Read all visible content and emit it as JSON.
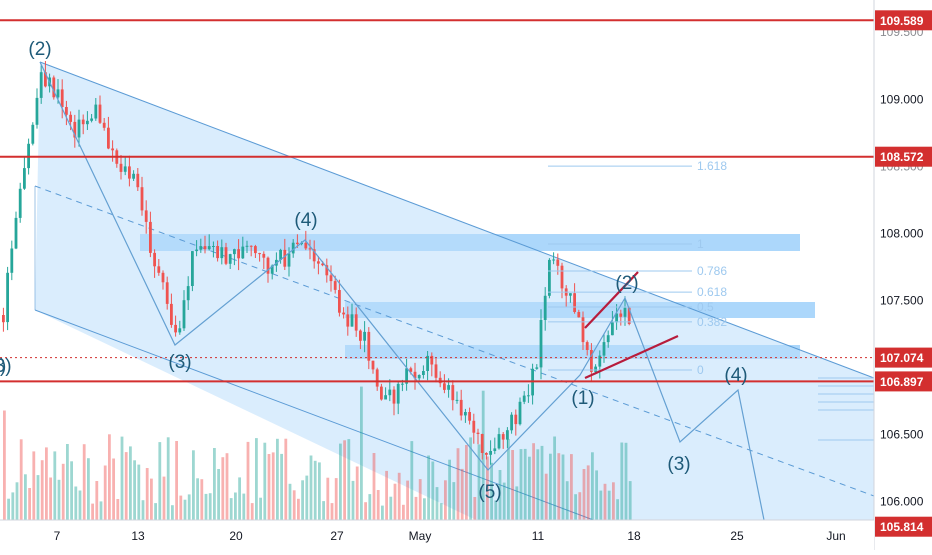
{
  "chart_data": {
    "type": "candlestick",
    "title": "",
    "xlabel": "",
    "ylabel": "",
    "ylim": [
      105.64,
      109.74
    ],
    "x_ticks": [
      "7",
      "13",
      "20",
      "27",
      "May",
      "11",
      "18",
      "25",
      "Jun"
    ],
    "y_ticks": [
      "109.000",
      "108.000",
      "107.500",
      "106.500",
      "106.000"
    ],
    "y_ticks_partial": [
      "109.500",
      "108.500"
    ],
    "price_levels": [
      {
        "label": "109.589",
        "value": 109.589,
        "color": "#d32f2f"
      },
      {
        "label": "108.572",
        "value": 108.572,
        "color": "#d32f2f"
      },
      {
        "label": "106.897",
        "value": 106.897,
        "color": "#d32f2f"
      },
      {
        "label": "105.814",
        "value": 105.814,
        "color": "#d32f2f"
      }
    ],
    "current_price": {
      "label": "107.074",
      "value": 107.074,
      "color": "#d32f2f"
    },
    "fib_levels": [
      {
        "label": "1.618",
        "ratio": 1.618
      },
      {
        "label": "1",
        "ratio": 1
      },
      {
        "label": "0.786",
        "ratio": 0.786
      },
      {
        "label": "0.618",
        "ratio": 0.618
      },
      {
        "label": "0.5",
        "ratio": 0.5
      },
      {
        "label": "0.382",
        "ratio": 0.382
      },
      {
        "label": "0",
        "ratio": 0
      }
    ],
    "wave_labels": [
      "(2)",
      "(3)",
      "(4)",
      "(5)",
      "(1)",
      "(2)",
      "(3)",
      "(4)",
      "(3)"
    ],
    "edge_label": ")",
    "colors": {
      "up": "#26a69a",
      "down": "#ef5350",
      "level_line": "#d32f2f",
      "channel_fill": "#bbdefb",
      "channel_line": "#5b9bd5",
      "zone_fill": "#90caf9",
      "wave_path": "#64a0d2",
      "wedge_line": "#b71c3c",
      "axis_text": "#131722"
    }
  }
}
